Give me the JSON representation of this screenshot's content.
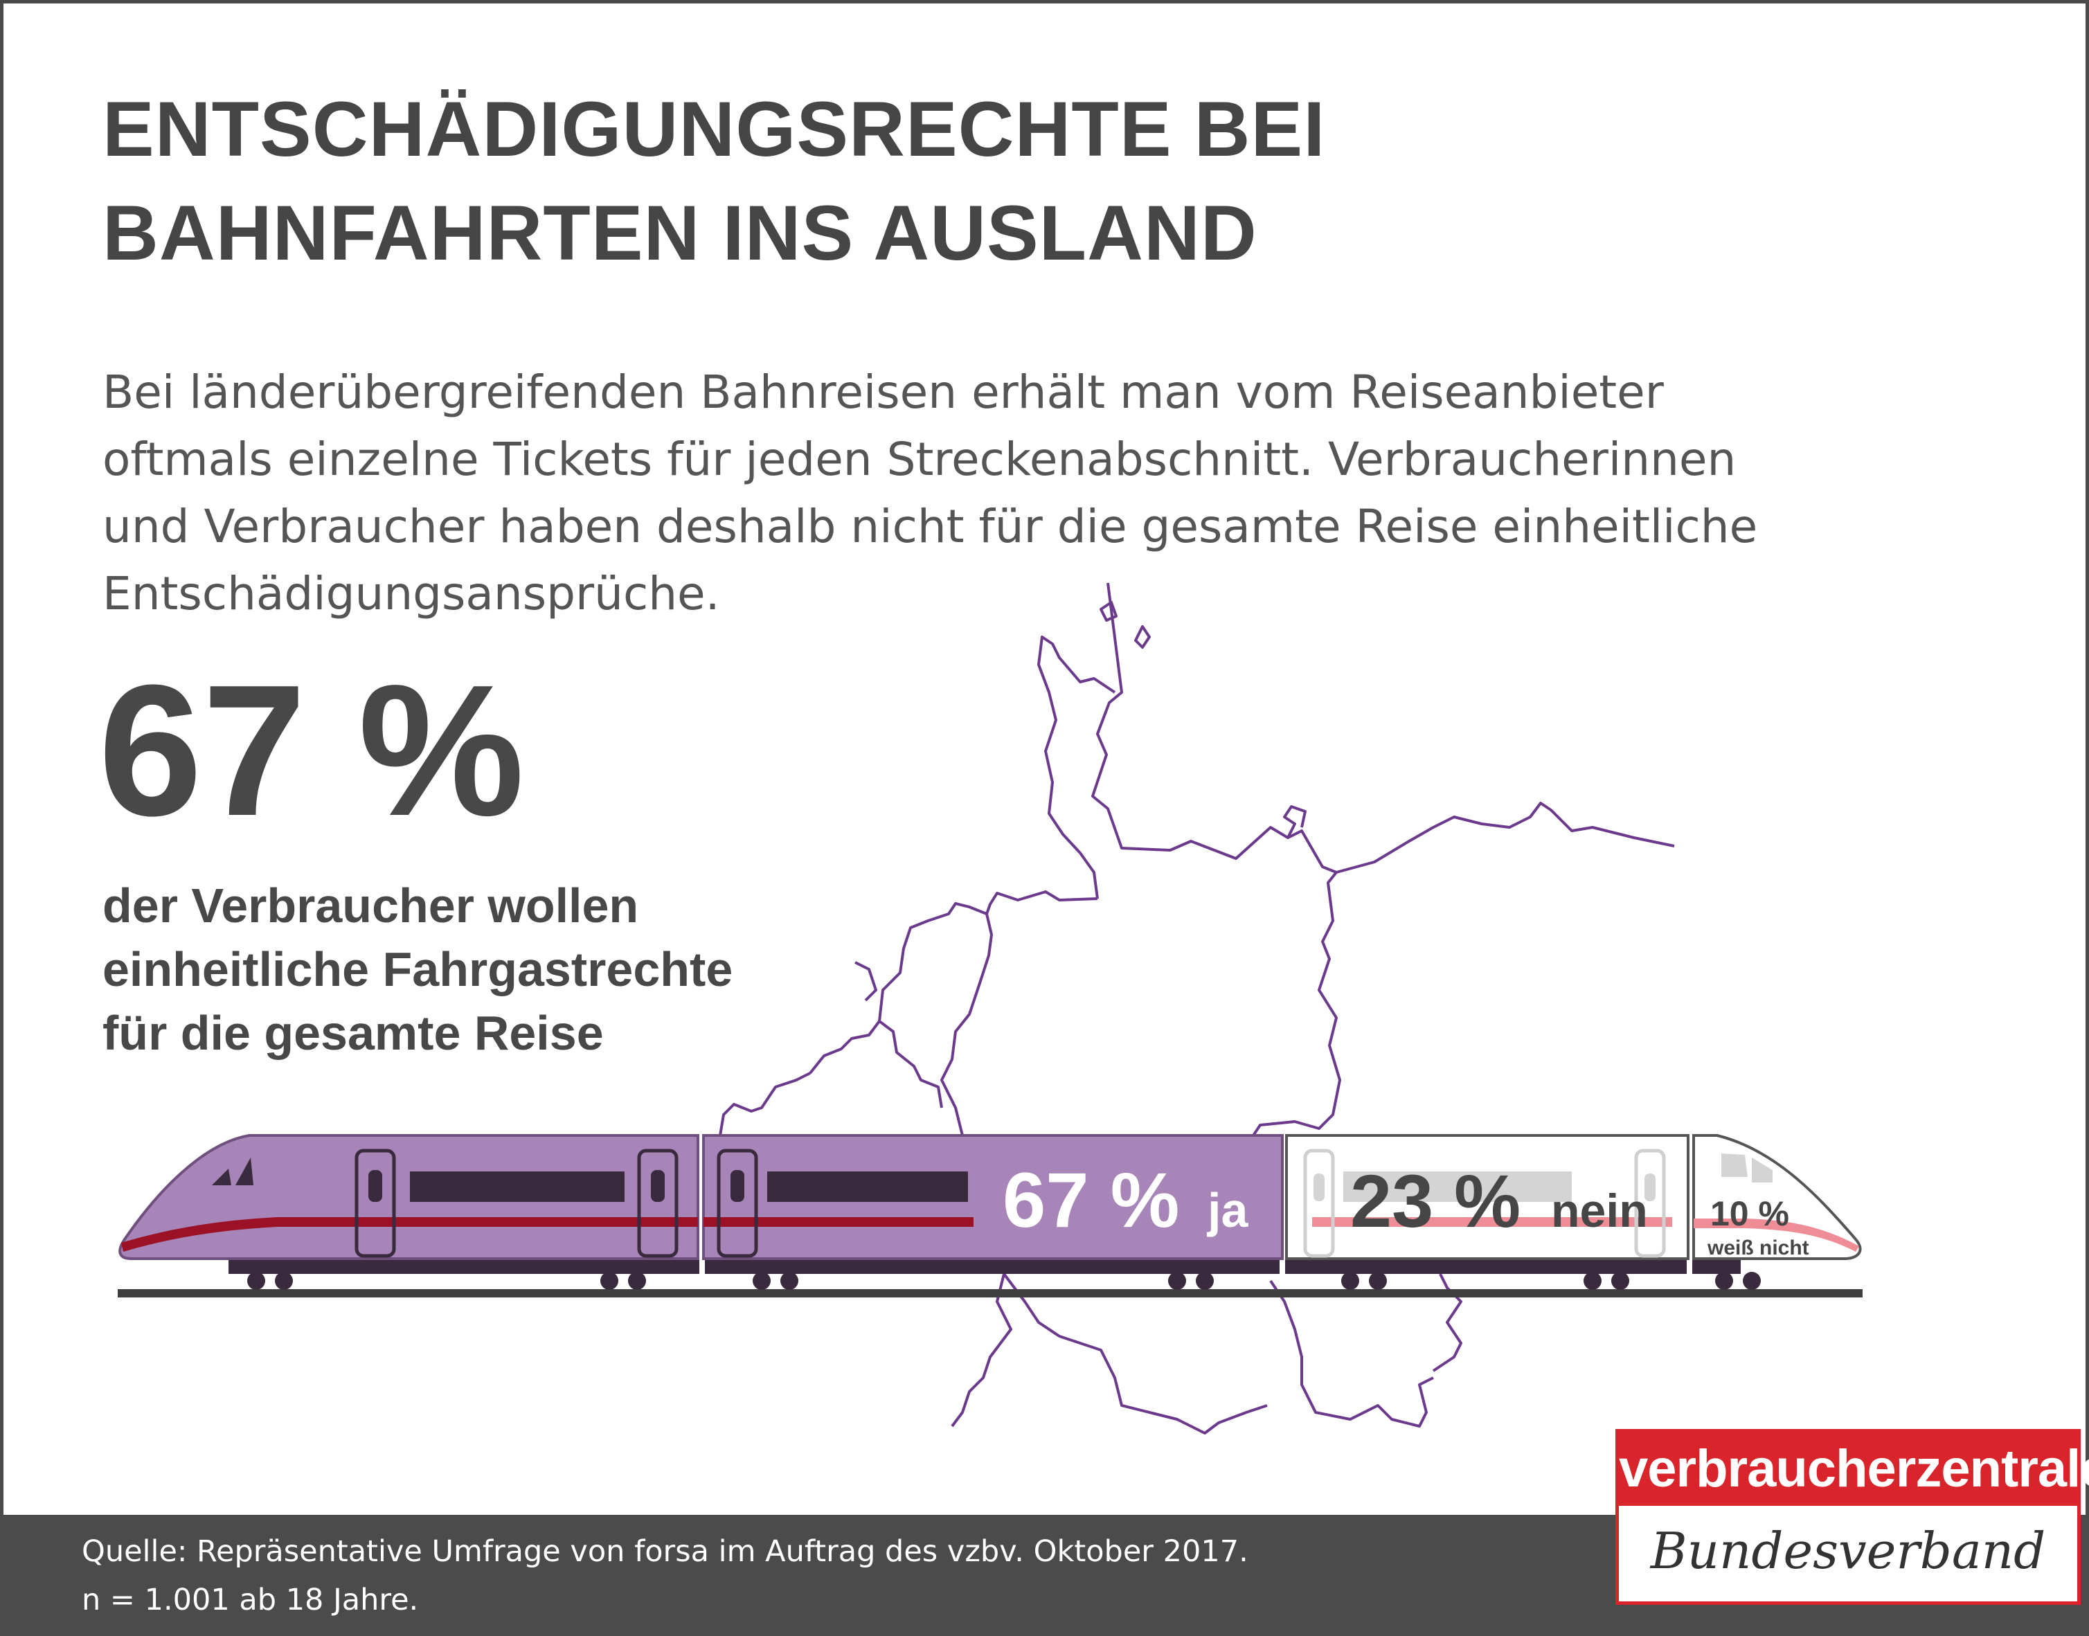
{
  "header": {
    "title_line1": "ENTSCHÄDIGUNGSRECHTE BEI",
    "title_line2": "BAHNFAHRTEN INS AUSLAND"
  },
  "intro": {
    "line1": "Bei länderübergreifenden Bahnreisen erhält man vom Reiseanbieter",
    "line2": "oftmals einzelne Tickets für jeden Streckenabschnitt. Verbraucherinnen",
    "line3": "und Verbraucher haben deshalb nicht für die gesamte Reise einheitliche",
    "line4": "Entschädigungsansprüche."
  },
  "highlight": {
    "value": "67 %",
    "text_line1": "der Verbraucher wollen",
    "text_line2": "einheitliche Fahrgastrechte",
    "text_line3": "für die gesamte Reise"
  },
  "chart_data": {
    "type": "bar",
    "categories": [
      "ja",
      "nein",
      "weiß nicht"
    ],
    "values": [
      67,
      23,
      10
    ],
    "unit": "%",
    "labels": {
      "ja": {
        "value": "67 %",
        "word": "ja"
      },
      "nein": {
        "value": "23 %",
        "word": "nein"
      },
      "weiss_nicht": {
        "value": "10 %",
        "word": "weiß nicht"
      }
    }
  },
  "colors": {
    "ja": "#a885b8",
    "nein": "#ffffff",
    "weiss_nicht": "#ffffff",
    "stripe_ja": "#9b1226",
    "stripe_other": "#ef8d97",
    "map_outline": "#6b3a8c",
    "text_dark": "#464646",
    "footer_bg": "#4b4b4b",
    "brand_red": "#d9242b"
  },
  "footer": {
    "source_line1": "Quelle: Repräsentative Umfrage von forsa im Auftrag des vzbv. Oktober 2017.",
    "source_line2": "n = 1.001 ab 18 Jahre."
  },
  "logo": {
    "top": "verbraucherzentrale",
    "bottom": "Bundesverband"
  },
  "icons": {
    "map": "germany-map-outline-icon",
    "train": "high-speed-train-icon"
  }
}
